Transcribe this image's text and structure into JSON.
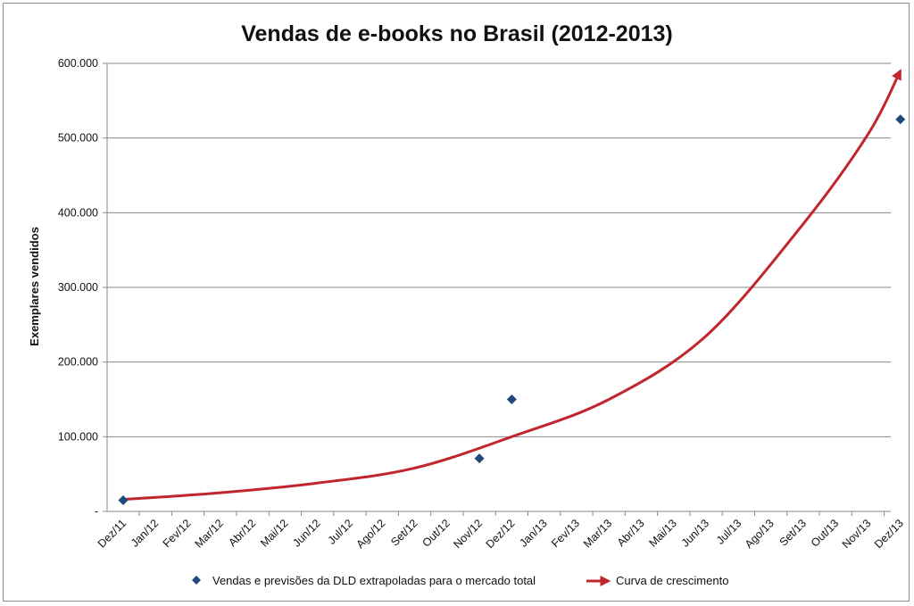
{
  "chart_data": {
    "type": "scatter",
    "title": "Vendas de e-books no Brasil (2012-2013)",
    "xlabel": "",
    "ylabel": "Exemplares vendidos",
    "categories": [
      "Dez/11",
      "Jan/12",
      "Fev/12",
      "Mar/12",
      "Abr/12",
      "Mai/12",
      "Jun/12",
      "Jul/12",
      "Ago/12",
      "Set/12",
      "Out/12",
      "Nov/12",
      "Dez/12",
      "Jan/13",
      "Fev/13",
      "Mar/13",
      "Abr/13",
      "Mai/13",
      "Jun/13",
      "Jul/13",
      "Ago/13",
      "Set/13",
      "Out/13",
      "Nov/13",
      "Dez/13"
    ],
    "ylim": [
      0,
      600000
    ],
    "yticks": [
      0,
      100000,
      200000,
      300000,
      400000,
      500000,
      600000
    ],
    "ytick_labels": [
      "-",
      "100.000",
      "200.000",
      "300.000",
      "400.000",
      "500.000",
      "600.000"
    ],
    "grid": true,
    "legend_position": "bottom",
    "series": [
      {
        "name": "Vendas e previsões da DLD extrapoladas para o mercado total",
        "type": "scatter",
        "marker": "diamond",
        "color": "#1f497d",
        "points": [
          {
            "x": "Dez/11",
            "y": 15000
          },
          {
            "x": "Nov/12",
            "y": 71000
          },
          {
            "x": "Dez/12",
            "y": 150000
          },
          {
            "x": "Dez/13",
            "y": 525000
          }
        ]
      },
      {
        "name": "Curva de crescimento",
        "type": "line",
        "arrow": true,
        "color": "#c0262b",
        "points": [
          {
            "x": "Dez/11",
            "y": 16000
          },
          {
            "x": "Mar/12",
            "y": 25000
          },
          {
            "x": "Jun/12",
            "y": 38000
          },
          {
            "x": "Set/12",
            "y": 58000
          },
          {
            "x": "Dez/12",
            "y": 100000
          },
          {
            "x": "Mar/13",
            "y": 150000
          },
          {
            "x": "Jun/13",
            "y": 235000
          },
          {
            "x": "Set/13",
            "y": 385000
          },
          {
            "x": "Nov/13",
            "y": 505000
          },
          {
            "x": "Dez/13",
            "y": 590000
          }
        ]
      }
    ]
  }
}
